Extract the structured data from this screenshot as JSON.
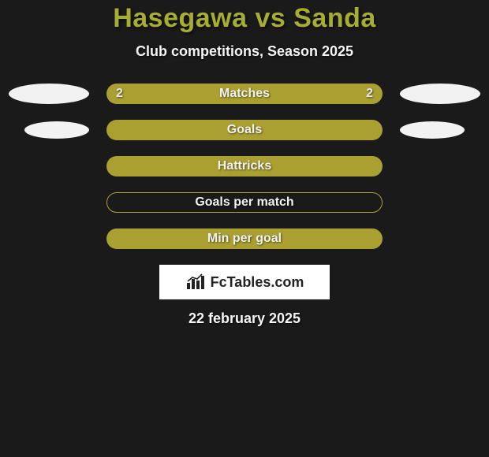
{
  "colors": {
    "background": "#1a1a1a",
    "title": "#a6ad33",
    "subtitle": "#f5f5f5",
    "bar_fill": "#aaa032",
    "bar_border": "#aaa032",
    "bar_label": "#f2f2f0",
    "bar_value": "#e6e6e4",
    "ellipse": "#f2f2f2",
    "logo_bg": "#ffffff",
    "logo_text": "#222222",
    "date": "#f5f5f5"
  },
  "title": "Hasegawa vs Sanda",
  "subtitle": "Club competitions, Season 2025",
  "rows": [
    {
      "label": "Matches",
      "left_value": "2",
      "right_value": "2",
      "show_values": true,
      "show_ellipses": true,
      "filled": true
    },
    {
      "label": "Goals",
      "show_values": false,
      "show_ellipses": true,
      "filled": true,
      "ellipse_narrow": true
    },
    {
      "label": "Hattricks",
      "show_values": false,
      "show_ellipses": false,
      "filled": true
    },
    {
      "label": "Goals per match",
      "show_values": false,
      "show_ellipses": false,
      "filled": false
    },
    {
      "label": "Min per goal",
      "show_values": false,
      "show_ellipses": false,
      "filled": true
    }
  ],
  "logo": {
    "text": "FcTables.com"
  },
  "date": "22 february 2025"
}
